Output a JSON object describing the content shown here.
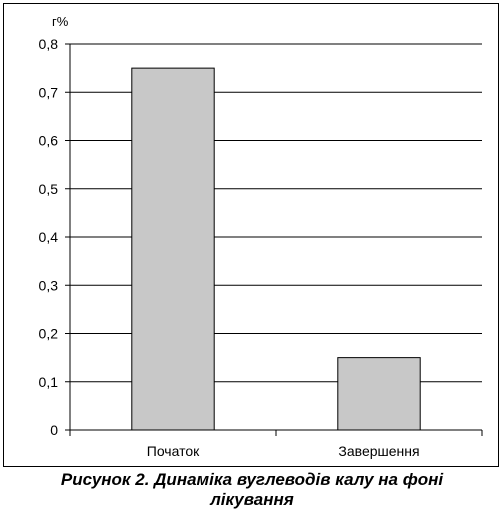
{
  "chart_data": {
    "type": "bar",
    "title": "",
    "xlabel": "",
    "ylabel": "г%",
    "categories": [
      "Початок",
      "Завершення"
    ],
    "values": [
      0.75,
      0.15
    ],
    "ylim": [
      0,
      0.8
    ],
    "yticks": [
      "0",
      "0,1",
      "0,2",
      "0,3",
      "0,4",
      "0,5",
      "0,6",
      "0,7",
      "0,8"
    ],
    "grid": true,
    "legend": "none",
    "colors": {
      "bar": "#c8c8c8",
      "bar_stroke": "#000000",
      "grid": "#000000"
    }
  },
  "caption": {
    "line1": "Рисунок 2. Динаміка вуглеводів калу на фоні",
    "line2": "лікування"
  }
}
